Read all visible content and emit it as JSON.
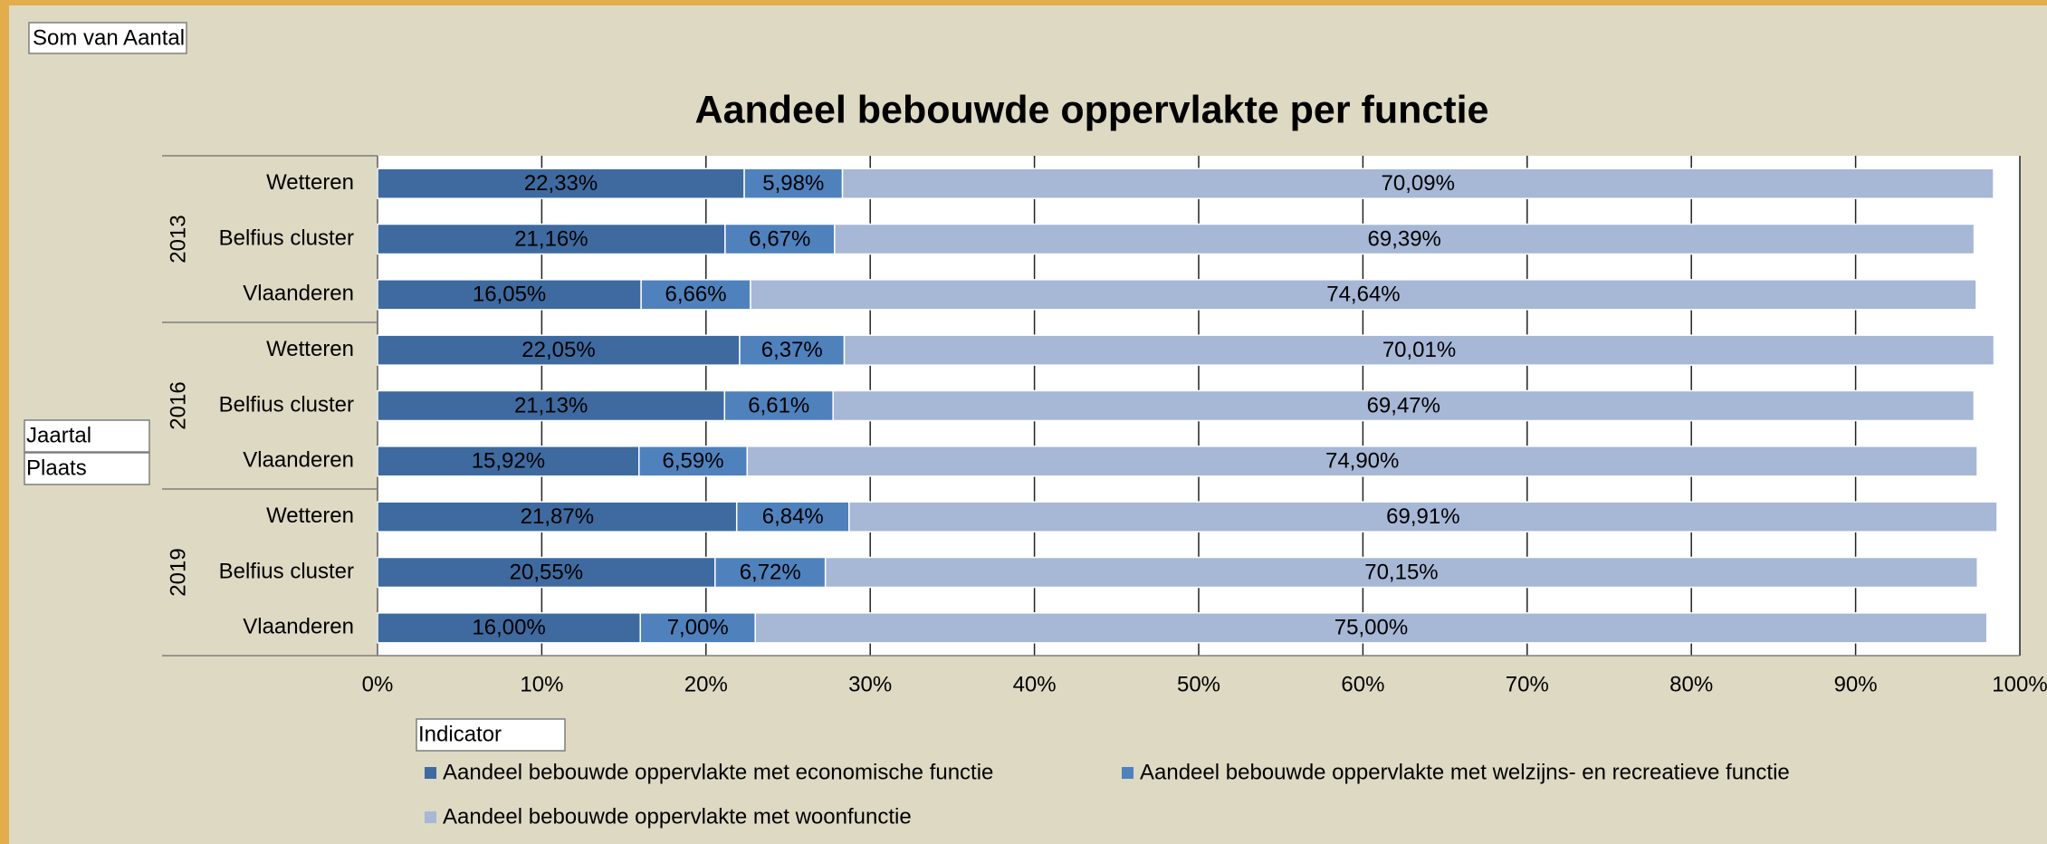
{
  "pivot": {
    "data_field": "Som van Aantal",
    "row_fields": [
      "Jaartal",
      "Plaats"
    ],
    "legend_field": "Indicator"
  },
  "chart_data": {
    "type": "bar",
    "orientation": "horizontal",
    "stacked": true,
    "title": "Aandeel bebouwde oppervlakte per functie",
    "groups": [
      {
        "name": "2013",
        "categories": [
          "Wetteren",
          "Belfius cluster",
          "Vlaanderen"
        ]
      },
      {
        "name": "2016",
        "categories": [
          "Wetteren",
          "Belfius cluster",
          "Vlaanderen"
        ]
      },
      {
        "name": "2019",
        "categories": [
          "Wetteren",
          "Belfius cluster",
          "Vlaanderen"
        ]
      }
    ],
    "series": [
      {
        "name": "Aandeel bebouwde oppervlakte met economische functie",
        "color": "#3e6aa0",
        "label_color": "#ffffff",
        "values": [
          22.33,
          21.16,
          16.05,
          22.05,
          21.13,
          15.92,
          21.87,
          20.55,
          16.0
        ],
        "value_labels": [
          "22,33%",
          "21,16%",
          "16,05%",
          "22,05%",
          "21,13%",
          "15,92%",
          "21,87%",
          "20,55%",
          "16,00%"
        ]
      },
      {
        "name": "Aandeel bebouwde oppervlakte met welzijns- en recreatieve functie",
        "color": "#4f81bd",
        "label_color": "#ffffff",
        "values": [
          5.98,
          6.67,
          6.66,
          6.37,
          6.61,
          6.59,
          6.84,
          6.72,
          7.0
        ],
        "value_labels": [
          "5,98%",
          "6,67%",
          "6,66%",
          "6,37%",
          "6,61%",
          "6,59%",
          "6,84%",
          "6,72%",
          "7,00%"
        ]
      },
      {
        "name": "Aandeel bebouwde oppervlakte met woonfunctie",
        "color": "#a7b7d6",
        "label_color": "#000000",
        "values": [
          70.09,
          69.39,
          74.64,
          70.01,
          69.47,
          74.9,
          69.91,
          70.15,
          75.0
        ],
        "value_labels": [
          "70,09%",
          "69,39%",
          "74,64%",
          "70,01%",
          "69,47%",
          "74,90%",
          "69,91%",
          "70,15%",
          "75,00%"
        ]
      }
    ],
    "xlim": [
      0,
      100
    ],
    "xticks": [
      {
        "value": 0,
        "label": "0%"
      },
      {
        "value": 10,
        "label": "10%"
      },
      {
        "value": 20,
        "label": "20%"
      },
      {
        "value": 30,
        "label": "30%"
      },
      {
        "value": 40,
        "label": "40%"
      },
      {
        "value": 50,
        "label": "50%"
      },
      {
        "value": 60,
        "label": "60%"
      },
      {
        "value": 70,
        "label": "70%"
      },
      {
        "value": 80,
        "label": "80%"
      },
      {
        "value": 90,
        "label": "90%"
      },
      {
        "value": 100,
        "label": "100%"
      }
    ],
    "grid": true,
    "legend": "bottom"
  }
}
